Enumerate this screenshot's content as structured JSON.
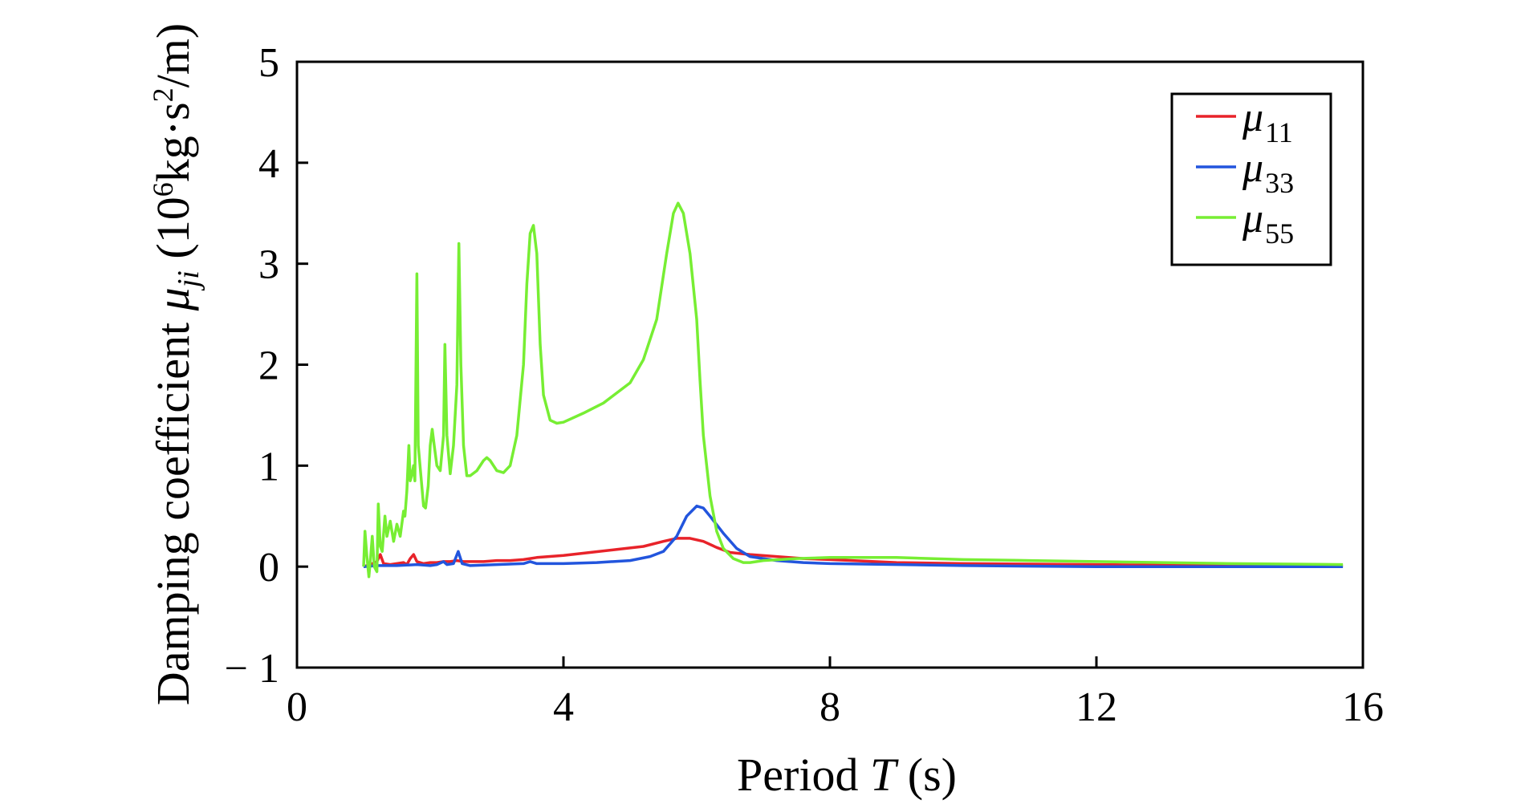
{
  "chart_data": {
    "type": "line",
    "title": "",
    "xlabel": {
      "prefix": "Period ",
      "var": "T",
      "suffix": " (s)"
    },
    "ylabel": {
      "prefix": "Damping coefficient ",
      "var": "μ",
      "var_sub": "ji",
      "suffix_pre": " (10",
      "sup1": "6",
      "mid": "kg·s",
      "sup2": "2",
      "suffix_post": "/m)"
    },
    "xlim": [
      0,
      16
    ],
    "ylim": [
      -1,
      5
    ],
    "xticks": [
      0,
      4,
      8,
      12,
      16
    ],
    "yticks": [
      -1,
      0,
      1,
      2,
      3,
      4,
      5
    ],
    "ytick_labels": [
      "− 1",
      "0",
      "1",
      "2",
      "3",
      "4",
      "5"
    ],
    "grid": false,
    "legend": "top-right",
    "series": [
      {
        "name": "μ",
        "sub": "11",
        "color": "#e8232a",
        "points": [
          [
            1.0,
            0.0
          ],
          [
            1.1,
            0.02
          ],
          [
            1.2,
            0.05
          ],
          [
            1.25,
            0.12
          ],
          [
            1.3,
            0.03
          ],
          [
            1.4,
            0.02
          ],
          [
            1.5,
            0.03
          ],
          [
            1.6,
            0.04
          ],
          [
            1.65,
            0.02
          ],
          [
            1.7,
            0.08
          ],
          [
            1.75,
            0.12
          ],
          [
            1.8,
            0.05
          ],
          [
            1.9,
            0.03
          ],
          [
            2.0,
            0.04
          ],
          [
            2.1,
            0.04
          ],
          [
            2.2,
            0.05
          ],
          [
            2.3,
            0.05
          ],
          [
            2.4,
            0.06
          ],
          [
            2.5,
            0.05
          ],
          [
            2.6,
            0.05
          ],
          [
            2.8,
            0.05
          ],
          [
            3.0,
            0.06
          ],
          [
            3.2,
            0.06
          ],
          [
            3.4,
            0.07
          ],
          [
            3.5,
            0.08
          ],
          [
            3.6,
            0.09
          ],
          [
            4.0,
            0.11
          ],
          [
            4.4,
            0.14
          ],
          [
            4.8,
            0.17
          ],
          [
            5.2,
            0.2
          ],
          [
            5.5,
            0.25
          ],
          [
            5.7,
            0.28
          ],
          [
            5.9,
            0.28
          ],
          [
            6.1,
            0.25
          ],
          [
            6.3,
            0.19
          ],
          [
            6.5,
            0.14
          ],
          [
            6.8,
            0.12
          ],
          [
            7.2,
            0.1
          ],
          [
            7.6,
            0.08
          ],
          [
            8.0,
            0.07
          ],
          [
            9.0,
            0.04
          ],
          [
            10.0,
            0.03
          ],
          [
            12.0,
            0.02
          ],
          [
            14.0,
            0.01
          ],
          [
            15.7,
            0.01
          ]
        ]
      },
      {
        "name": "μ",
        "sub": "33",
        "color": "#2255dd",
        "points": [
          [
            1.0,
            0.0
          ],
          [
            1.2,
            0.01
          ],
          [
            1.5,
            0.01
          ],
          [
            1.8,
            0.02
          ],
          [
            2.0,
            0.01
          ],
          [
            2.1,
            0.02
          ],
          [
            2.2,
            0.05
          ],
          [
            2.25,
            0.02
          ],
          [
            2.35,
            0.03
          ],
          [
            2.42,
            0.15
          ],
          [
            2.48,
            0.03
          ],
          [
            2.6,
            0.01
          ],
          [
            3.0,
            0.02
          ],
          [
            3.4,
            0.03
          ],
          [
            3.5,
            0.05
          ],
          [
            3.6,
            0.03
          ],
          [
            4.0,
            0.03
          ],
          [
            4.5,
            0.04
          ],
          [
            5.0,
            0.06
          ],
          [
            5.3,
            0.1
          ],
          [
            5.5,
            0.15
          ],
          [
            5.7,
            0.3
          ],
          [
            5.85,
            0.5
          ],
          [
            6.0,
            0.6
          ],
          [
            6.1,
            0.58
          ],
          [
            6.2,
            0.5
          ],
          [
            6.4,
            0.33
          ],
          [
            6.6,
            0.18
          ],
          [
            6.8,
            0.1
          ],
          [
            7.2,
            0.06
          ],
          [
            7.6,
            0.04
          ],
          [
            8.0,
            0.03
          ],
          [
            10.0,
            0.01
          ],
          [
            12.0,
            0.0
          ],
          [
            15.7,
            0.0
          ]
        ]
      },
      {
        "name": "μ",
        "sub": "55",
        "color": "#77ee33",
        "points": [
          [
            1.0,
            0.0
          ],
          [
            1.02,
            0.35
          ],
          [
            1.05,
            0.1
          ],
          [
            1.08,
            -0.1
          ],
          [
            1.1,
            0.05
          ],
          [
            1.13,
            0.3
          ],
          [
            1.16,
            0.0
          ],
          [
            1.2,
            -0.05
          ],
          [
            1.22,
            0.62
          ],
          [
            1.25,
            0.2
          ],
          [
            1.28,
            0.15
          ],
          [
            1.32,
            0.5
          ],
          [
            1.35,
            0.3
          ],
          [
            1.4,
            0.45
          ],
          [
            1.45,
            0.25
          ],
          [
            1.5,
            0.42
          ],
          [
            1.55,
            0.3
          ],
          [
            1.6,
            0.55
          ],
          [
            1.62,
            0.5
          ],
          [
            1.65,
            0.75
          ],
          [
            1.68,
            1.2
          ],
          [
            1.7,
            0.85
          ],
          [
            1.72,
            0.9
          ],
          [
            1.75,
            1.0
          ],
          [
            1.77,
            0.85
          ],
          [
            1.8,
            2.9
          ],
          [
            1.82,
            1.2
          ],
          [
            1.86,
            0.9
          ],
          [
            1.9,
            0.6
          ],
          [
            1.93,
            0.58
          ],
          [
            1.97,
            0.8
          ],
          [
            2.0,
            1.2
          ],
          [
            2.03,
            1.36
          ],
          [
            2.06,
            1.2
          ],
          [
            2.1,
            1.0
          ],
          [
            2.15,
            0.95
          ],
          [
            2.2,
            1.3
          ],
          [
            2.22,
            2.2
          ],
          [
            2.25,
            1.3
          ],
          [
            2.3,
            0.92
          ],
          [
            2.35,
            1.2
          ],
          [
            2.4,
            1.8
          ],
          [
            2.43,
            3.2
          ],
          [
            2.46,
            2.0
          ],
          [
            2.5,
            1.2
          ],
          [
            2.55,
            0.9
          ],
          [
            2.6,
            0.9
          ],
          [
            2.7,
            0.95
          ],
          [
            2.8,
            1.05
          ],
          [
            2.85,
            1.08
          ],
          [
            2.9,
            1.05
          ],
          [
            3.0,
            0.95
          ],
          [
            3.1,
            0.93
          ],
          [
            3.2,
            1.0
          ],
          [
            3.3,
            1.3
          ],
          [
            3.4,
            2.0
          ],
          [
            3.45,
            2.8
          ],
          [
            3.5,
            3.3
          ],
          [
            3.55,
            3.38
          ],
          [
            3.6,
            3.1
          ],
          [
            3.65,
            2.2
          ],
          [
            3.7,
            1.7
          ],
          [
            3.8,
            1.45
          ],
          [
            3.9,
            1.42
          ],
          [
            4.0,
            1.43
          ],
          [
            4.3,
            1.52
          ],
          [
            4.6,
            1.62
          ],
          [
            5.0,
            1.82
          ],
          [
            5.2,
            2.05
          ],
          [
            5.4,
            2.45
          ],
          [
            5.55,
            3.1
          ],
          [
            5.65,
            3.5
          ],
          [
            5.72,
            3.6
          ],
          [
            5.8,
            3.5
          ],
          [
            5.9,
            3.1
          ],
          [
            6.0,
            2.45
          ],
          [
            6.05,
            1.85
          ],
          [
            6.1,
            1.3
          ],
          [
            6.2,
            0.7
          ],
          [
            6.3,
            0.35
          ],
          [
            6.4,
            0.18
          ],
          [
            6.55,
            0.08
          ],
          [
            6.7,
            0.04
          ],
          [
            6.8,
            0.04
          ],
          [
            7.0,
            0.06
          ],
          [
            7.5,
            0.08
          ],
          [
            8.0,
            0.09
          ],
          [
            9.0,
            0.09
          ],
          [
            10.0,
            0.07
          ],
          [
            11.0,
            0.06
          ],
          [
            12.0,
            0.05
          ],
          [
            14.0,
            0.03
          ],
          [
            15.7,
            0.02
          ]
        ]
      }
    ]
  }
}
